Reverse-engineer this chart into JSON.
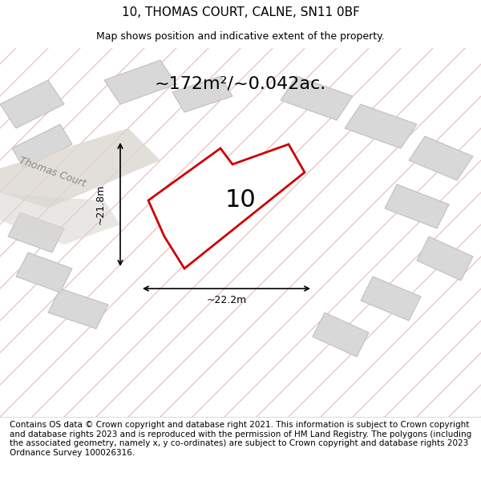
{
  "title": "10, THOMAS COURT, CALNE, SN11 0BF",
  "subtitle": "Map shows position and indicative extent of the property.",
  "area_text": "~172m²/~0.042ac.",
  "property_number": "10",
  "dim_width": "~22.2m",
  "dim_height": "~21.8m",
  "footer": "Contains OS data © Crown copyright and database right 2021. This information is subject to Crown copyright and database rights 2023 and is reproduced with the permission of HM Land Registry. The polygons (including the associated geometry, namely x, y co-ordinates) are subject to Crown copyright and database rights 2023 Ordnance Survey 100026316.",
  "bg_color": "#f0ede8",
  "map_bg": "#f0ede8",
  "road_color": "#ffffff",
  "building_color": "#d8d8d8",
  "property_fill": "#ffffff",
  "property_edge": "#cc0000",
  "grid_line_color": "#e8b8b8",
  "road_label": "Thomas Court",
  "title_fontsize": 11,
  "subtitle_fontsize": 9,
  "footer_fontsize": 7.5
}
